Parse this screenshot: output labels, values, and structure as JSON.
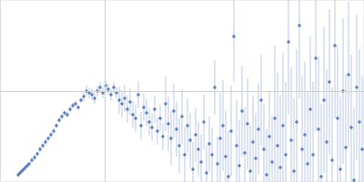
{
  "chart_data": {
    "type": "scatter",
    "color": "#3a66b8",
    "marker": "circle",
    "grid": true,
    "tick_labels": false,
    "xlim": [
      0,
      4
    ],
    "ylim": [
      0,
      2
    ],
    "xticks": [
      1.15
    ],
    "yticks": [
      1
    ],
    "x": [
      0.2,
      0.22,
      0.24,
      0.26,
      0.28,
      0.3,
      0.32,
      0.35,
      0.38,
      0.41,
      0.44,
      0.47,
      0.5,
      0.53,
      0.56,
      0.59,
      0.62,
      0.65,
      0.68,
      0.71,
      0.74,
      0.77,
      0.8,
      0.83,
      0.86,
      0.89,
      0.92,
      0.95,
      0.98,
      1.01,
      1.04,
      1.07,
      1.1,
      1.13,
      1.16,
      1.19,
      1.22,
      1.25,
      1.28,
      1.31,
      1.34,
      1.37,
      1.4,
      1.43,
      1.46,
      1.49,
      1.52,
      1.55,
      1.58,
      1.61,
      1.64,
      1.67,
      1.7,
      1.73,
      1.76,
      1.79,
      1.82,
      1.85,
      1.88,
      1.91,
      1.94,
      1.97,
      2.0,
      2.03,
      2.06,
      2.09,
      2.12,
      2.15,
      2.18,
      2.21,
      2.24,
      2.27,
      2.3,
      2.33,
      2.36,
      2.39,
      2.42,
      2.45,
      2.48,
      2.51,
      2.54,
      2.57,
      2.6,
      2.63,
      2.66,
      2.69,
      2.72,
      2.75,
      2.78,
      2.81,
      2.84,
      2.87,
      2.9,
      2.93,
      2.96,
      2.99,
      3.02,
      3.05,
      3.08,
      3.11,
      3.14,
      3.17,
      3.2,
      3.23,
      3.26,
      3.29,
      3.32,
      3.35,
      3.38,
      3.41,
      3.44,
      3.47,
      3.5,
      3.53,
      3.56,
      3.59,
      3.62,
      3.65,
      3.68,
      3.71,
      3.74,
      3.77,
      3.8,
      3.83,
      3.86,
      3.89,
      3.92,
      3.95,
      3.98
    ],
    "values": [
      0.08,
      0.1,
      0.12,
      0.14,
      0.16,
      0.18,
      0.2,
      0.24,
      0.27,
      0.31,
      0.36,
      0.4,
      0.44,
      0.48,
      0.52,
      0.56,
      0.62,
      0.68,
      0.72,
      0.76,
      0.74,
      0.8,
      0.84,
      0.86,
      0.82,
      0.9,
      0.94,
      1.0,
      0.98,
      0.96,
      0.92,
      1.0,
      1.04,
      0.98,
      1.06,
      1.02,
      0.96,
      1.04,
      0.98,
      0.9,
      0.86,
      0.92,
      0.8,
      0.88,
      0.74,
      0.7,
      0.96,
      0.62,
      0.82,
      0.76,
      0.66,
      0.6,
      0.8,
      0.56,
      0.7,
      0.5,
      0.86,
      0.64,
      0.48,
      0.78,
      0.58,
      0.4,
      0.72,
      0.3,
      0.62,
      0.46,
      0.14,
      0.52,
      0.36,
      0.22,
      0.66,
      0.1,
      0.42,
      0.3,
      1.04,
      0.2,
      0.48,
      0.62,
      0.28,
      0.06,
      0.56,
      1.6,
      0.4,
      0.18,
      0.78,
      0.32,
      0.64,
      0.12,
      0.44,
      0.26,
      0.58,
      0.9,
      0.36,
      0.08,
      0.5,
      0.22,
      0.7,
      0.4,
      0.16,
      0.62,
      0.3,
      1.54,
      0.46,
      0.12,
      0.66,
      1.72,
      0.36,
      0.52,
      0.2,
      0.8,
      0.3,
      1.36,
      0.58,
      0.06,
      0.9,
      0.44,
      1.1,
      0.24,
      1.5,
      0.7,
      0.14,
      1.0,
      0.38,
      1.18,
      0.6,
      0.02,
      1.04,
      0.66,
      0.36
    ],
    "errors": [
      0.02,
      0.02,
      0.02,
      0.02,
      0.02,
      0.02,
      0.02,
      0.03,
      0.03,
      0.03,
      0.03,
      0.03,
      0.03,
      0.03,
      0.03,
      0.03,
      0.03,
      0.03,
      0.03,
      0.03,
      0.03,
      0.03,
      0.03,
      0.03,
      0.03,
      0.03,
      0.06,
      0.06,
      0.06,
      0.06,
      0.06,
      0.06,
      0.06,
      0.06,
      0.06,
      0.06,
      0.06,
      0.06,
      0.06,
      0.15,
      0.15,
      0.15,
      0.15,
      0.15,
      0.15,
      0.15,
      0.15,
      0.15,
      0.15,
      0.15,
      0.15,
      0.15,
      0.15,
      0.15,
      0.15,
      0.15,
      0.3,
      0.3,
      0.3,
      0.3,
      0.3,
      0.3,
      0.3,
      0.3,
      0.3,
      0.3,
      0.3,
      0.3,
      0.3,
      0.3,
      0.3,
      0.3,
      0.3,
      0.3,
      0.3,
      0.3,
      0.5,
      0.5,
      0.5,
      0.5,
      0.5,
      0.5,
      0.5,
      0.5,
      0.5,
      0.5,
      0.5,
      0.5,
      0.5,
      0.5,
      0.5,
      0.5,
      0.5,
      0.5,
      0.5,
      0.5,
      0.8,
      0.8,
      0.8,
      0.8,
      0.8,
      0.8,
      0.8,
      0.8,
      0.8,
      0.8,
      0.8,
      0.8,
      0.8,
      0.8,
      0.8,
      0.8,
      0.8,
      0.8,
      0.8,
      0.8,
      0.8,
      0.8,
      0.8,
      0.8,
      0.8,
      0.8,
      0.8,
      0.8,
      0.8,
      0.8,
      0.8,
      0.8,
      0.8
    ]
  }
}
